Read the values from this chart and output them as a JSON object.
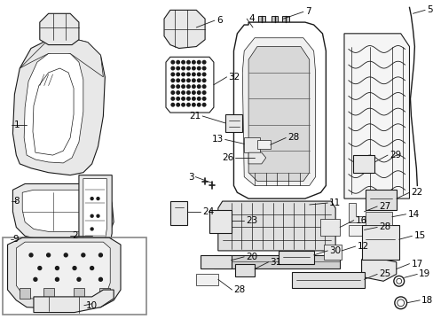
{
  "bg_color": "#ffffff",
  "line_color": "#1a1a1a",
  "fig_width": 4.89,
  "fig_height": 3.6,
  "dpi": 100,
  "label_fs": 7.5,
  "lw_main": 0.8,
  "lw_thin": 0.5,
  "gray_fill": "#e8e8e8",
  "dark_fill": "#c8c8c8",
  "white_fill": "#ffffff"
}
